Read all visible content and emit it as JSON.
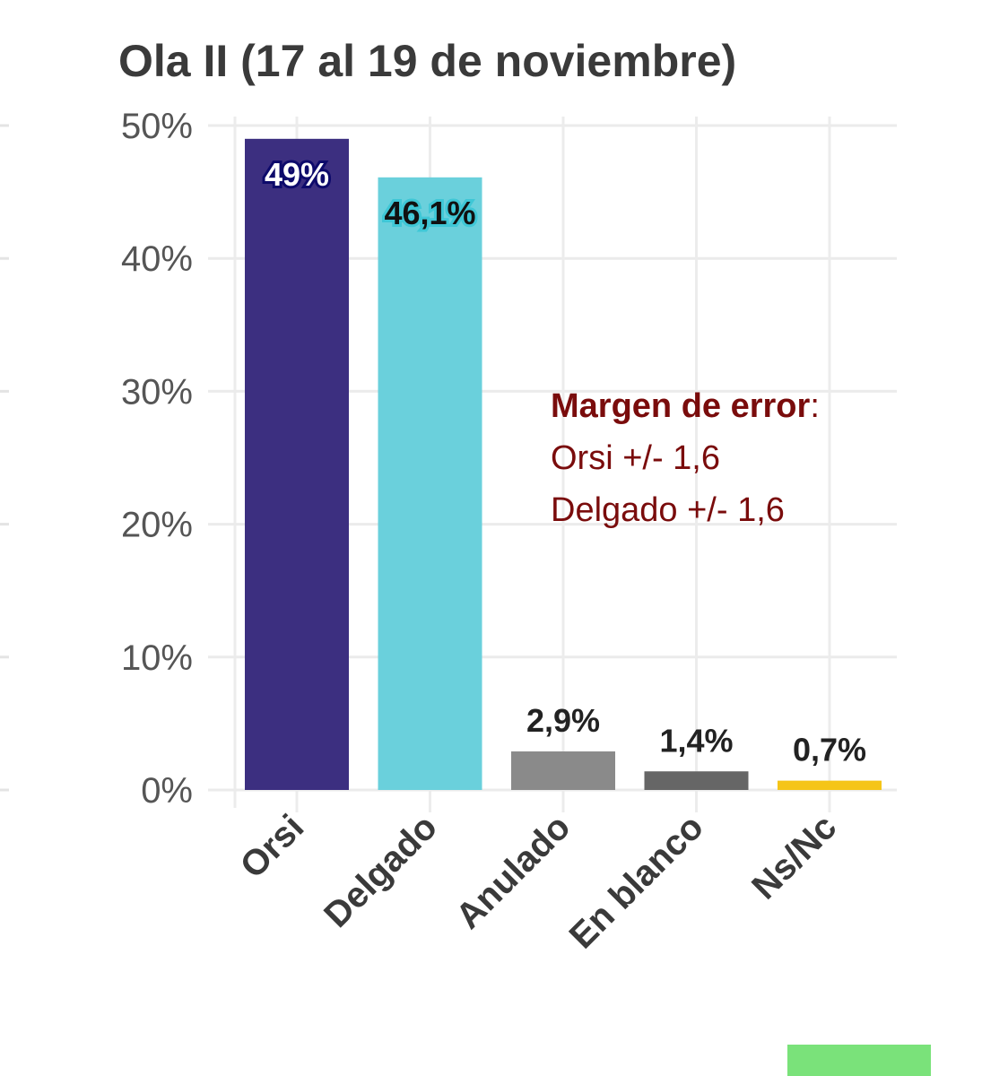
{
  "chart_data": {
    "type": "bar",
    "title": "Ola II (17 al 19 de noviembre)",
    "categories": [
      "Orsi",
      "Delgado",
      "Anulado",
      "En blanco",
      "Ns/Nc"
    ],
    "values": [
      49,
      46.1,
      2.9,
      1.4,
      0.7
    ],
    "value_labels": [
      "49%",
      "46,1%",
      "2,9%",
      "1,4%",
      "0,7%"
    ],
    "colors": [
      "#3c2f80",
      "#6ad0dc",
      "#8a8a8a",
      "#666666",
      "#f5c518"
    ],
    "ylim": [
      0,
      50
    ],
    "yticks": [
      0,
      10,
      20,
      30,
      40,
      50
    ],
    "ytick_labels": [
      "0%",
      "10%",
      "20%",
      "30%",
      "40%",
      "50%"
    ],
    "xlabel": "",
    "ylabel": "",
    "grid": true
  },
  "annotation": {
    "heading": "Margen de error",
    "heading_suffix": ":",
    "lines": [
      "Orsi +/- 1,6",
      "Delgado +/- 1,6"
    ]
  }
}
